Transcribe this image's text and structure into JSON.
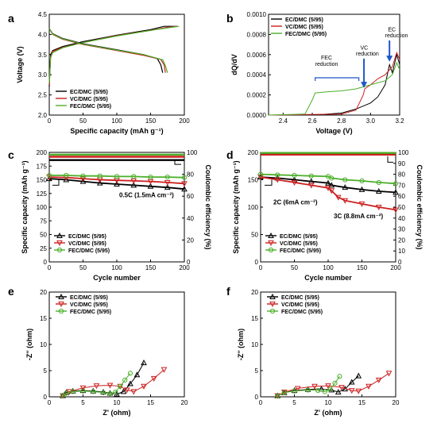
{
  "colors": {
    "ec": "#000000",
    "vc": "#cc1f1f",
    "fec": "#4caf2a",
    "arrow": "#1f55c8",
    "axis": "#000000"
  },
  "chart_data": [
    {
      "panel": "a",
      "type": "line",
      "xlabel": "Specific capacity (mAh g⁻¹)",
      "ylabel": "Voltage (V)",
      "xlim": [
        0,
        200
      ],
      "ylim": [
        2.0,
        4.5
      ],
      "xticks": [
        "0",
        "50",
        "100",
        "150",
        "200"
      ],
      "yticks": [
        "2.0",
        "2.5",
        "3.0",
        "3.5",
        "4.0",
        "4.5"
      ],
      "legend": [
        "EC/DMC (5/95)",
        "VC/DMC (5/95)",
        "FEC/DMC (5/95)"
      ],
      "series": [
        {
          "name": "EC/DMC (5/95)",
          "color": "ec",
          "x": [
            0,
            2,
            5,
            20,
            50,
            100,
            150,
            170,
            190
          ],
          "y": [
            2.7,
            3.5,
            3.6,
            3.7,
            3.82,
            3.98,
            4.12,
            4.2,
            4.2
          ]
        },
        {
          "name": "VC/DMC (5/95)",
          "color": "vc",
          "x": [
            0,
            2,
            5,
            20,
            50,
            100,
            150,
            175,
            190
          ],
          "y": [
            2.75,
            3.45,
            3.58,
            3.68,
            3.8,
            3.97,
            4.1,
            4.18,
            4.2
          ]
        },
        {
          "name": "FEC/DMC (5/95)",
          "color": "fec",
          "x": [
            0,
            2,
            5,
            20,
            50,
            100,
            150,
            178,
            192
          ],
          "y": [
            2.8,
            3.42,
            3.55,
            3.67,
            3.8,
            3.96,
            4.1,
            4.17,
            4.2
          ]
        },
        {
          "name": "",
          "color": "ec",
          "x": [
            0,
            5,
            20,
            50,
            100,
            140,
            160,
            165,
            168
          ],
          "y": [
            4.15,
            4.02,
            3.9,
            3.77,
            3.62,
            3.5,
            3.4,
            3.25,
            3.05
          ]
        },
        {
          "name": "",
          "color": "vc",
          "x": [
            0,
            5,
            20,
            50,
            100,
            140,
            165,
            170,
            172
          ],
          "y": [
            4.15,
            4.0,
            3.88,
            3.75,
            3.6,
            3.48,
            3.38,
            3.25,
            3.05
          ]
        },
        {
          "name": "",
          "color": "fec",
          "x": [
            0,
            5,
            20,
            50,
            100,
            140,
            168,
            172,
            175
          ],
          "y": [
            4.15,
            4.01,
            3.89,
            3.76,
            3.61,
            3.5,
            3.37,
            3.22,
            3.05
          ]
        }
      ]
    },
    {
      "panel": "b",
      "type": "line",
      "xlabel": "Voltage (V)",
      "ylabel": "dQ/dV",
      "xlim": [
        2.3,
        3.2
      ],
      "ylim": [
        0,
        0.001
      ],
      "xticks": [
        "2.4",
        "2.6",
        "2.8",
        "3.0",
        "3.2"
      ],
      "yticks": [
        "0.0000",
        "0.0002",
        "0.0004",
        "0.0006",
        "0.0008",
        "0.0010"
      ],
      "legend": [
        "EC/DMC (5/95)",
        "VC/DMC (5/95)",
        "FEC/DMC (5/95)"
      ],
      "annotations": [
        "FEC reduction",
        "VC reduction",
        "EC reduction"
      ],
      "series": [
        {
          "name": "EC/DMC (5/95)",
          "color": "ec",
          "x": [
            2.3,
            2.6,
            2.8,
            2.9,
            3.0,
            3.05,
            3.1,
            3.13,
            3.15,
            3.18,
            3.2
          ],
          "y": [
            0,
            0,
            2e-05,
            6e-05,
            0.00012,
            0.00018,
            0.0003,
            0.0005,
            0.00042,
            0.0006,
            0.0005
          ]
        },
        {
          "name": "VC/DMC (5/95)",
          "color": "vc",
          "x": [
            2.3,
            2.8,
            2.9,
            2.95,
            2.96,
            3.0,
            3.05,
            3.1,
            3.15,
            3.18,
            3.2
          ],
          "y": [
            0,
            1e-05,
            5e-05,
            0.0002,
            0.00026,
            0.0003,
            0.00036,
            0.0004,
            0.00048,
            0.00062,
            0.00055
          ]
        },
        {
          "name": "FEC/DMC (5/95)",
          "color": "fec",
          "x": [
            2.3,
            2.55,
            2.6,
            2.62,
            2.7,
            2.8,
            2.9,
            3.0,
            3.1,
            3.15,
            3.18,
            3.2
          ],
          "y": [
            0,
            1e-05,
            0.00015,
            0.00022,
            0.00023,
            0.00024,
            0.00026,
            0.0003,
            0.00034,
            0.0004,
            0.00052,
            0.00045
          ]
        }
      ]
    },
    {
      "panel": "c",
      "type": "scatter",
      "xlabel": "Cycle number",
      "ylabel": "Specific capacity (mAh g⁻¹)",
      "y2label": "Coulombic efficiency (%)",
      "xlim": [
        0,
        200
      ],
      "ylim": [
        0,
        200
      ],
      "y2lim": [
        0,
        100
      ],
      "xticks": [
        "0",
        "50",
        "100",
        "150",
        "200"
      ],
      "yticks": [
        "0",
        "25",
        "50",
        "75",
        "100",
        "125",
        "150",
        "175",
        "200"
      ],
      "y2ticks": [
        "0",
        "20",
        "40",
        "60",
        "80",
        "100"
      ],
      "annotation": "0.5C (1.5mA cm⁻²)",
      "legend": [
        "EC/DMC (5/95)",
        "VC/DMC (5/95)",
        "FEC/DMC (5/95)"
      ],
      "series": [
        {
          "name": "EC/DMC (5/95)",
          "color": "ec",
          "x": [
            0,
            25,
            50,
            75,
            100,
            125,
            150,
            175,
            200
          ],
          "y": [
            152,
            150,
            147,
            144,
            142,
            140,
            138,
            136,
            133
          ]
        },
        {
          "name": "VC/DMC (5/95)",
          "color": "vc",
          "x": [
            0,
            25,
            50,
            75,
            100,
            125,
            150,
            175,
            200
          ],
          "y": [
            155,
            154,
            152,
            150,
            149,
            148,
            147,
            145,
            143
          ]
        },
        {
          "name": "FEC/DMC (5/95)",
          "color": "fec",
          "x": [
            0,
            25,
            50,
            75,
            100,
            125,
            150,
            175,
            200
          ],
          "y": [
            158,
            158,
            157,
            157,
            156,
            156,
            155,
            155,
            154
          ]
        }
      ],
      "ce_series": [
        {
          "color": "ec",
          "x": [
            0,
            200
          ],
          "y": [
            93,
            93
          ]
        },
        {
          "color": "vc",
          "x": [
            0,
            200
          ],
          "y": [
            96,
            96
          ]
        },
        {
          "color": "fec",
          "x": [
            0,
            200
          ],
          "y": [
            98,
            98
          ]
        }
      ]
    },
    {
      "panel": "d",
      "type": "scatter",
      "xlabel": "Cycle number",
      "ylabel": "Specific capacity (mAh g⁻¹)",
      "y2label": "Coulombic efficiency (%)",
      "xlim": [
        0,
        200
      ],
      "ylim": [
        0,
        200
      ],
      "y2lim": [
        0,
        100
      ],
      "xticks": [
        "0",
        "50",
        "100",
        "150",
        "200"
      ],
      "yticks": [
        "0",
        "50",
        "100",
        "150",
        "200"
      ],
      "y2ticks": [
        "0",
        "10",
        "20",
        "30",
        "40",
        "50",
        "60",
        "70",
        "80",
        "90",
        "100"
      ],
      "annotations": [
        "2C (6mA cm⁻²)",
        "3C (8.8mA cm⁻²)"
      ],
      "legend": [
        "EC/DMC (5/95)",
        "VC/DMC (5/95)",
        "FEC/DMC (5/95)"
      ],
      "series": [
        {
          "name": "EC/DMC (5/95)",
          "color": "ec",
          "x": [
            0,
            25,
            50,
            75,
            100,
            105,
            125,
            150,
            175,
            200
          ],
          "y": [
            155,
            153,
            150,
            147,
            144,
            140,
            136,
            132,
            129,
            127
          ]
        },
        {
          "name": "VC/DMC (5/95)",
          "color": "vc",
          "x": [
            0,
            25,
            50,
            75,
            100,
            105,
            115,
            125,
            150,
            175,
            200
          ],
          "y": [
            155,
            150,
            145,
            140,
            135,
            130,
            118,
            112,
            106,
            100,
            95
          ]
        },
        {
          "name": "FEC/DMC (5/95)",
          "color": "fec",
          "x": [
            0,
            25,
            50,
            75,
            100,
            105,
            125,
            150,
            175,
            200
          ],
          "y": [
            160,
            159,
            158,
            157,
            156,
            153,
            150,
            148,
            145,
            143
          ]
        }
      ],
      "ce_series": [
        {
          "color": "ec",
          "x": [
            0,
            200
          ],
          "y": [
            99,
            99
          ]
        },
        {
          "color": "vc",
          "x": [
            0,
            200
          ],
          "y": [
            98,
            98
          ]
        },
        {
          "color": "fec",
          "x": [
            0,
            200
          ],
          "y": [
            99.5,
            99.5
          ]
        }
      ]
    },
    {
      "panel": "e",
      "type": "scatter",
      "xlabel": "Z' (ohm)",
      "ylabel": "-Z'' (ohm)",
      "xlim": [
        0,
        20
      ],
      "ylim": [
        0,
        20
      ],
      "xticks": [
        "0",
        "5",
        "10",
        "15",
        "20"
      ],
      "yticks": [
        "0",
        "5",
        "10",
        "15",
        "20"
      ],
      "legend": [
        "EC/DMC (5/95)",
        "VC/DMC (5/95)",
        "FEC/DMC (5/95)"
      ],
      "series": [
        {
          "name": "EC/DMC (5/95)",
          "color": "ec",
          "x": [
            2.0,
            2.5,
            3.5,
            5.0,
            6.5,
            8.0,
            9.0,
            10.0,
            11.0,
            12.0,
            13.0,
            14.0
          ],
          "y": [
            0.2,
            0.8,
            1.1,
            1.2,
            1.1,
            0.9,
            0.7,
            0.5,
            1.0,
            2.5,
            4.2,
            6.5
          ]
        },
        {
          "name": "VC/DMC (5/95)",
          "color": "vc",
          "x": [
            2.0,
            3.0,
            5.0,
            7.0,
            9.0,
            10.5,
            11.5,
            12.5,
            14.0,
            15.5,
            17.0
          ],
          "y": [
            0.2,
            1.0,
            1.7,
            2.1,
            2.2,
            2.0,
            1.3,
            1.0,
            2.0,
            3.5,
            5.2
          ]
        },
        {
          "name": "FEC/DMC (5/95)",
          "color": "fec",
          "x": [
            2.0,
            2.5,
            3.5,
            5.0,
            6.5,
            8.0,
            9.0,
            9.8,
            10.5,
            11.2,
            12.0
          ],
          "y": [
            0.2,
            0.7,
            1.0,
            1.1,
            1.0,
            0.8,
            0.6,
            0.9,
            2.0,
            3.2,
            4.5
          ]
        }
      ]
    },
    {
      "panel": "f",
      "type": "scatter",
      "xlabel": "Z' (ohm)",
      "ylabel": "-Z'' (ohm)",
      "xlim": [
        0,
        20
      ],
      "ylim": [
        0,
        20
      ],
      "xticks": [
        "0",
        "5",
        "10",
        "15",
        "20"
      ],
      "yticks": [
        "0",
        "5",
        "10",
        "15",
        "20"
      ],
      "legend": [
        "EC/DMC (5/95)",
        "VC/DMC (5/95)",
        "FEC/DMC (5/95)"
      ],
      "series": [
        {
          "name": "EC/DMC (5/95)",
          "color": "ec",
          "x": [
            2.5,
            3.5,
            5.0,
            7.0,
            9.0,
            10.5,
            11.5,
            12.5,
            13.5,
            14.5
          ],
          "y": [
            0.2,
            0.8,
            1.2,
            1.4,
            1.5,
            1.3,
            0.9,
            1.5,
            2.8,
            4.0
          ]
        },
        {
          "name": "VC/DMC (5/95)",
          "color": "vc",
          "x": [
            2.5,
            3.5,
            5.5,
            8.0,
            10.0,
            12.0,
            13.5,
            14.5,
            16.0,
            17.5,
            19.0
          ],
          "y": [
            0.2,
            0.9,
            1.6,
            2.0,
            2.1,
            1.8,
            1.2,
            1.1,
            2.0,
            3.2,
            4.5
          ]
        },
        {
          "name": "FEC/DMC (5/95)",
          "color": "fec",
          "x": [
            2.5,
            3.5,
            5.0,
            7.0,
            8.5,
            9.5,
            10.3,
            11.0,
            11.7
          ],
          "y": [
            0.2,
            0.8,
            1.1,
            1.3,
            1.2,
            1.0,
            1.4,
            2.6,
            3.9
          ]
        }
      ]
    }
  ]
}
